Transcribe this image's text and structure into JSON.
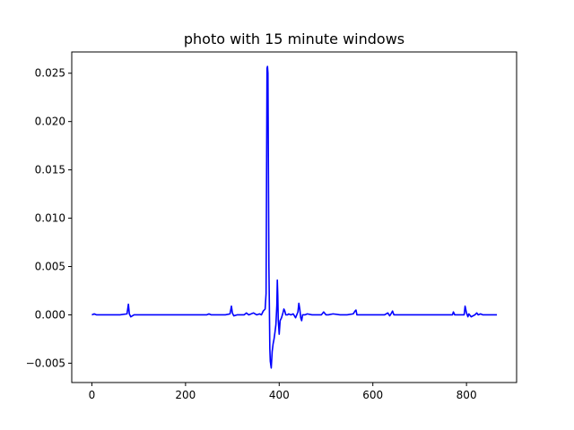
{
  "chart_data": {
    "type": "line",
    "title": "photo with 15 minute windows",
    "xlabel": "",
    "ylabel": "",
    "xlim": [
      -43,
      907
    ],
    "ylim": [
      -0.007,
      0.0272
    ],
    "x_ticks": [
      0,
      200,
      400,
      600,
      800
    ],
    "x_tick_labels": [
      "0",
      "200",
      "400",
      "600",
      "800"
    ],
    "y_ticks": [
      -0.005,
      0.0,
      0.005,
      0.01,
      0.015,
      0.02,
      0.025
    ],
    "y_tick_labels": [
      "−0.005",
      "0.000",
      "0.005",
      "0.010",
      "0.015",
      "0.020",
      "0.025"
    ],
    "grid": false,
    "series": [
      {
        "color": "#0000ff",
        "x": [
          0,
          5,
          10,
          20,
          40,
          60,
          75,
          78,
          80,
          83,
          90,
          120,
          160,
          200,
          230,
          245,
          250,
          255,
          270,
          285,
          295,
          298,
          300,
          303,
          310,
          325,
          330,
          335,
          345,
          352,
          358,
          362,
          366,
          370,
          372,
          374,
          375,
          376,
          377,
          378,
          379,
          380,
          381,
          383,
          385,
          387,
          389,
          391,
          393,
          395,
          396,
          397,
          398,
          400,
          402,
          405,
          408,
          410,
          412,
          414,
          416,
          418,
          420,
          425,
          430,
          435,
          440,
          442,
          444,
          446,
          448,
          450,
          455,
          460,
          470,
          480,
          490,
          495,
          500,
          505,
          515,
          530,
          545,
          558,
          562,
          564,
          566,
          575,
          590,
          610,
          625,
          632,
          636,
          640,
          642,
          645,
          650,
          665,
          700,
          740,
          770,
          772,
          775,
          790,
          795,
          797,
          800,
          803,
          805,
          810,
          818,
          822,
          825,
          830,
          835,
          845,
          865
        ],
        "values": [
          0.0,
          0.0001,
          0.0,
          0.0,
          0.0,
          0.0,
          0.0001,
          0.0011,
          0.0001,
          -0.0002,
          0.0,
          0.0,
          0.0,
          0.0,
          0.0,
          0.0,
          0.0001,
          0.0,
          0.0,
          0.0,
          0.0001,
          0.0009,
          0.0002,
          -0.0001,
          0.0,
          0.0,
          0.0002,
          0.0,
          0.0002,
          0.0,
          0.0001,
          0.0,
          0.0004,
          0.0006,
          0.0022,
          0.0255,
          0.0257,
          0.025,
          0.015,
          0.005,
          0.001,
          -0.0035,
          -0.0048,
          -0.0055,
          -0.0038,
          -0.003,
          -0.0025,
          -0.0018,
          -0.001,
          0.001,
          0.0036,
          0.002,
          -0.0005,
          -0.002,
          -0.0006,
          -0.0003,
          0.0002,
          0.0006,
          0.0004,
          0.0,
          0.0,
          0.0,
          0.0001,
          0.0,
          0.0001,
          -0.0003,
          0.0003,
          0.0012,
          0.0006,
          -0.0003,
          -0.0006,
          0.0,
          0.0,
          0.0001,
          0.0,
          0.0,
          0.0,
          0.0003,
          0.0,
          0.0,
          0.0001,
          0.0,
          0.0,
          0.0001,
          0.0004,
          0.0005,
          0.0,
          0.0,
          0.0,
          0.0,
          0.0,
          0.0002,
          -0.0001,
          0.0002,
          0.0004,
          0.0,
          0.0,
          0.0,
          0.0,
          0.0,
          0.0,
          0.0003,
          0.0,
          0.0,
          0.0,
          0.0009,
          0.0002,
          -0.0002,
          0.0001,
          -0.0002,
          0.0,
          0.0002,
          0.0,
          0.0001,
          0.0,
          0.0,
          0.0
        ]
      }
    ]
  }
}
